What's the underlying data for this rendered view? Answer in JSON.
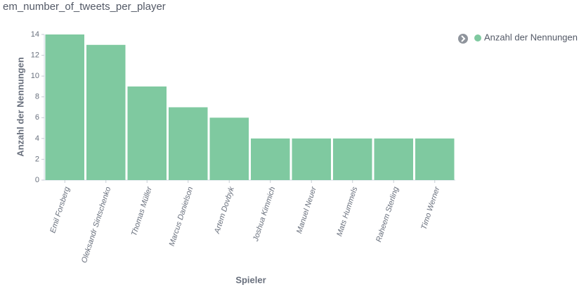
{
  "chart_data": {
    "type": "bar",
    "title": "em_number_of_tweets_per_player",
    "x_label": "Spieler",
    "y_label": "Anzahl der Nennungen",
    "categories": [
      "Emil Forsberg",
      "Oleksandr Sintschenko",
      "Thomas Müller",
      "Marcus Danielson",
      "Artem Dovbyk",
      "Joshua Kimmich",
      "Manuel Neuer",
      "Mats Hummels",
      "Raheem Sterling",
      "Timo Werner"
    ],
    "series": [
      {
        "name": "Anzahl der Nennungen",
        "color": "#7fc9a0",
        "values": [
          14,
          13,
          9,
          7,
          6,
          4,
          4,
          4,
          4,
          4
        ]
      }
    ],
    "ylim": [
      0,
      14
    ],
    "yticks": [
      0,
      2,
      4,
      6,
      8,
      10,
      12,
      14
    ],
    "legend": "top-right"
  }
}
